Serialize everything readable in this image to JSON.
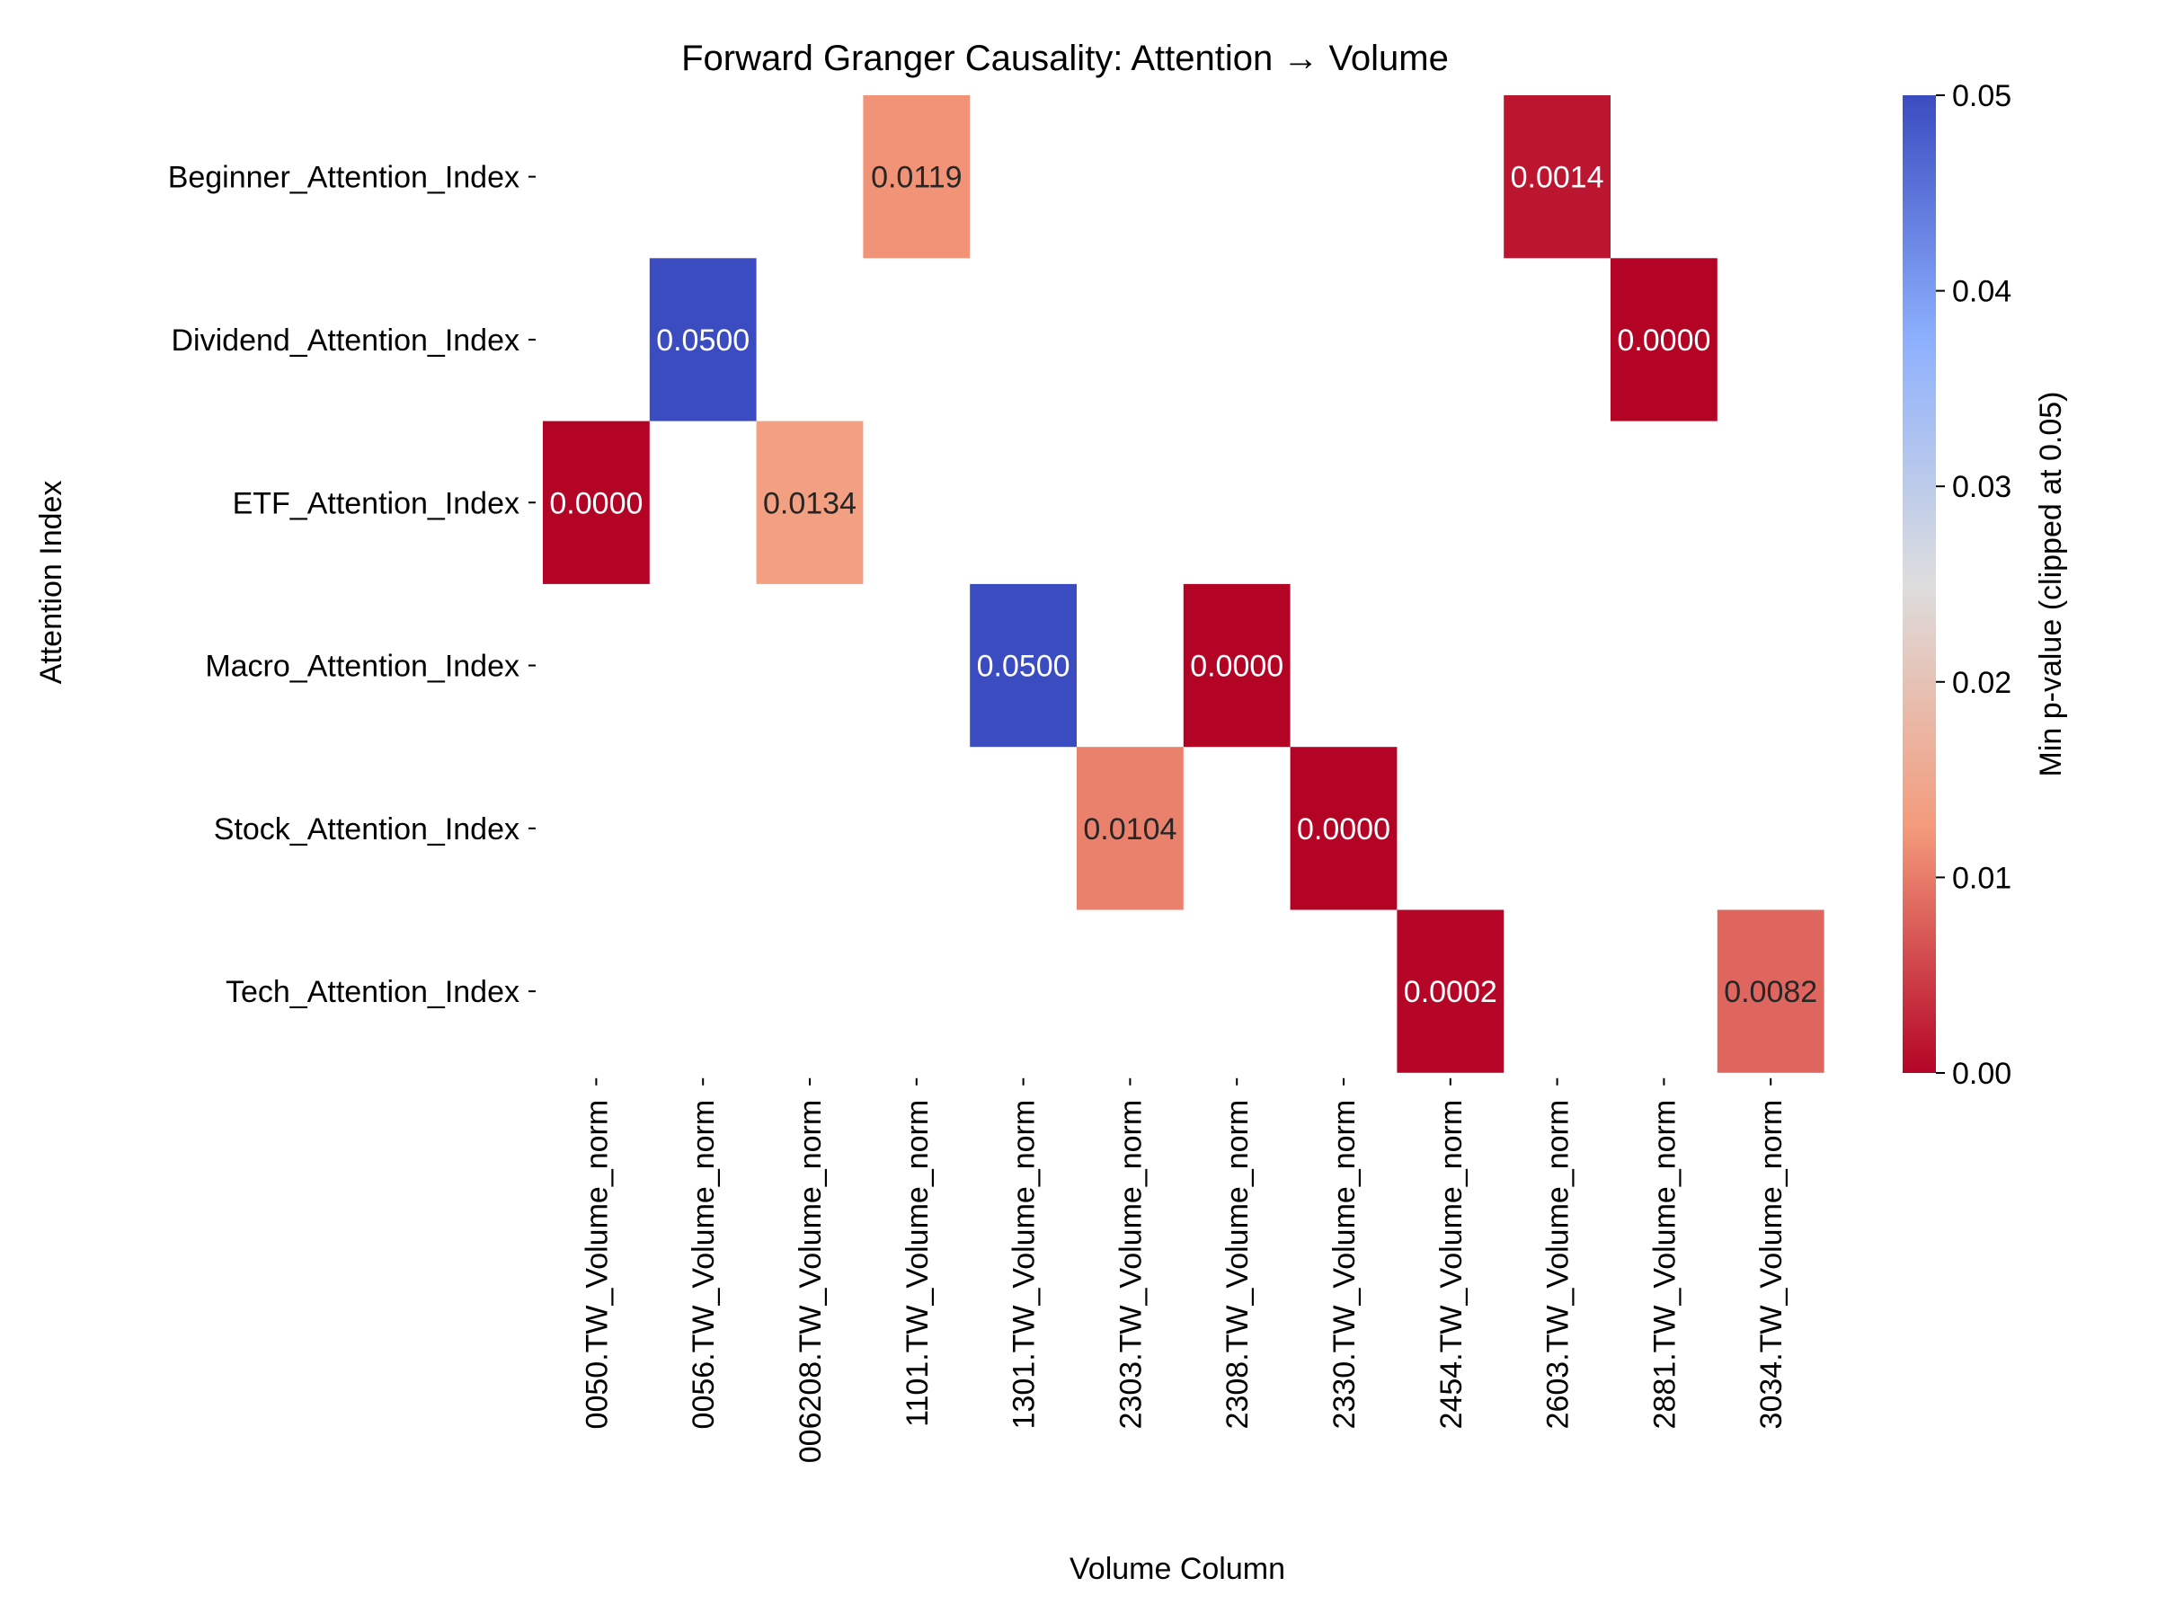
{
  "chart_data": {
    "type": "heatmap",
    "title": "Forward Granger Causality: Attention → Volume",
    "xlabel": "Volume Column",
    "ylabel": "Attention Index",
    "x_categories": [
      "0050.TW_Volume_norm",
      "0056.TW_Volume_norm",
      "006208.TW_Volume_norm",
      "1101.TW_Volume_norm",
      "1301.TW_Volume_norm",
      "2303.TW_Volume_norm",
      "2308.TW_Volume_norm",
      "2330.TW_Volume_norm",
      "2454.TW_Volume_norm",
      "2603.TW_Volume_norm",
      "2881.TW_Volume_norm",
      "3034.TW_Volume_norm"
    ],
    "y_categories": [
      "Beginner_Attention_Index",
      "Dividend_Attention_Index",
      "ETF_Attention_Index",
      "Macro_Attention_Index",
      "Stock_Attention_Index",
      "Tech_Attention_Index"
    ],
    "cells": [
      {
        "row": 0,
        "col": 3,
        "value": 0.0119,
        "label": "0.0119"
      },
      {
        "row": 0,
        "col": 9,
        "value": 0.0014,
        "label": "0.0014"
      },
      {
        "row": 1,
        "col": 1,
        "value": 0.05,
        "label": "0.0500"
      },
      {
        "row": 1,
        "col": 10,
        "value": 0.0,
        "label": "0.0000"
      },
      {
        "row": 2,
        "col": 0,
        "value": 0.0,
        "label": "0.0000"
      },
      {
        "row": 2,
        "col": 2,
        "value": 0.0134,
        "label": "0.0134"
      },
      {
        "row": 3,
        "col": 4,
        "value": 0.05,
        "label": "0.0500"
      },
      {
        "row": 3,
        "col": 6,
        "value": 0.0,
        "label": "0.0000"
      },
      {
        "row": 4,
        "col": 5,
        "value": 0.0104,
        "label": "0.0104"
      },
      {
        "row": 4,
        "col": 7,
        "value": 0.0,
        "label": "0.0000"
      },
      {
        "row": 5,
        "col": 8,
        "value": 0.0002,
        "label": "0.0002"
      },
      {
        "row": 5,
        "col": 11,
        "value": 0.0082,
        "label": "0.0082"
      }
    ],
    "colorbar": {
      "label": "Min p-value (clipped at 0.05)",
      "range": [
        0,
        0.05
      ],
      "ticks": [
        0.0,
        0.01,
        0.02,
        0.03,
        0.04,
        0.05
      ],
      "tick_labels": [
        "0.00",
        "0.01",
        "0.02",
        "0.03",
        "0.04",
        "0.05"
      ],
      "colormap": "coolwarm_r"
    },
    "grid": false
  }
}
